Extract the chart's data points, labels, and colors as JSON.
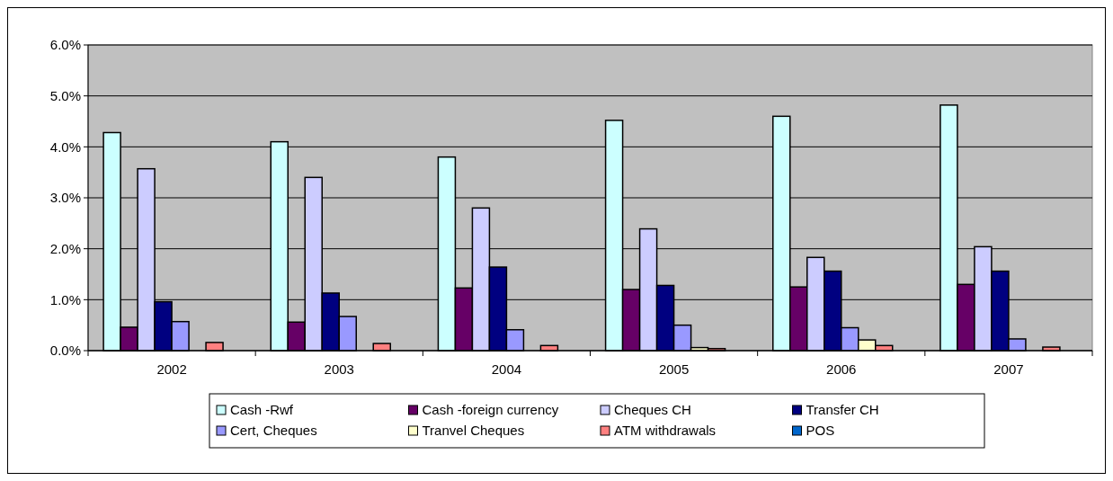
{
  "chart_data": {
    "type": "bar",
    "categories": [
      "2002",
      "2003",
      "2004",
      "2005",
      "2006",
      "2007"
    ],
    "series": [
      {
        "name": "Cash -Rwf",
        "color": "#ccffff",
        "values": [
          4.28,
          4.1,
          3.8,
          4.52,
          4.6,
          4.82
        ]
      },
      {
        "name": "Cash -foreign currency",
        "color": "#660066",
        "values": [
          0.46,
          0.56,
          1.23,
          1.2,
          1.25,
          1.3
        ]
      },
      {
        "name": "Cheques CH",
        "color": "#ccccff",
        "values": [
          3.57,
          3.4,
          2.8,
          2.39,
          1.83,
          2.04
        ]
      },
      {
        "name": "Transfer CH",
        "color": "#000080",
        "values": [
          0.96,
          1.13,
          1.64,
          1.28,
          1.56,
          1.56
        ]
      },
      {
        "name": "Cert, Cheques",
        "color": "#9999ff",
        "values": [
          0.57,
          0.67,
          0.41,
          0.5,
          0.45,
          0.23
        ]
      },
      {
        "name": "Tranvel Cheques",
        "color": "#ffffcc",
        "values": [
          0,
          0,
          0,
          0.06,
          0.21,
          0
        ]
      },
      {
        "name": "ATM withdrawals",
        "color": "#ff8080",
        "values": [
          0.16,
          0.14,
          0.1,
          0.04,
          0.1,
          0.07
        ]
      },
      {
        "name": "POS",
        "color": "#0066cc",
        "values": [
          0,
          0,
          0,
          0,
          0,
          0
        ]
      }
    ],
    "ylim": [
      0,
      6
    ],
    "yticks": [
      {
        "value": 0,
        "label": "0.0%"
      },
      {
        "value": 1,
        "label": "1.0%"
      },
      {
        "value": 2,
        "label": "2.0%"
      },
      {
        "value": 3,
        "label": "3.0%"
      },
      {
        "value": 4,
        "label": "4.0%"
      },
      {
        "value": 5,
        "label": "5.0%"
      },
      {
        "value": 6,
        "label": "6.0%"
      }
    ],
    "grid": "y",
    "legend": "bottom"
  }
}
